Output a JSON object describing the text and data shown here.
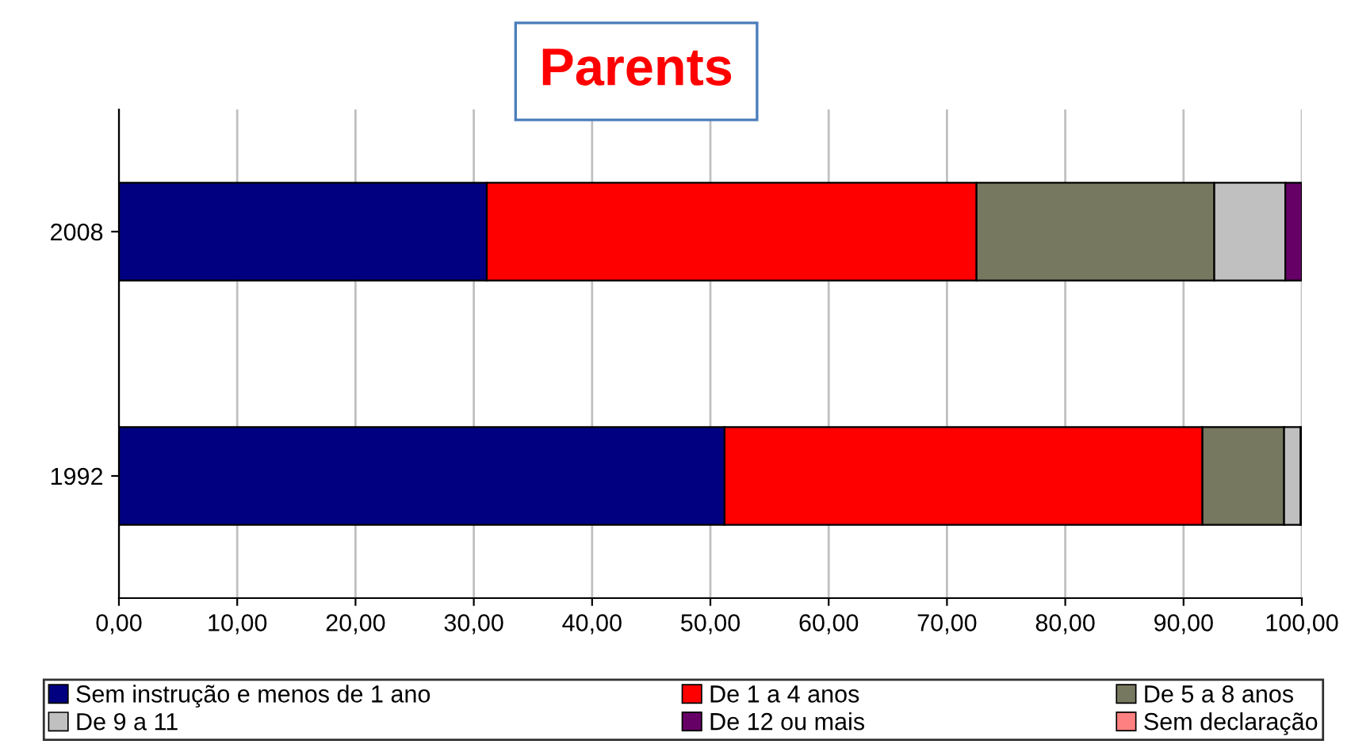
{
  "chart_data": {
    "type": "bar",
    "orientation": "horizontal",
    "stacked": true,
    "title": "Parents",
    "categories": [
      "2008",
      "1992"
    ],
    "series": [
      {
        "name": "Sem instrução e menos de 1 ano",
        "color": "#000080",
        "values": [
          31.1,
          51.2
        ]
      },
      {
        "name": "De 1 a 4 anos",
        "color": "#ff0000",
        "values": [
          41.4,
          40.4
        ]
      },
      {
        "name": "De 5 a 8 anos",
        "color": "#777860",
        "values": [
          20.1,
          6.9
        ]
      },
      {
        "name": "De 9 a 11",
        "color": "#c0c0c0",
        "values": [
          6.0,
          1.4
        ]
      },
      {
        "name": "De 12 ou mais",
        "color": "#660066",
        "values": [
          1.4,
          0.1
        ]
      },
      {
        "name": "Sem declaração",
        "color": "#ff8080",
        "values": [
          0,
          0
        ]
      }
    ],
    "xlim": [
      0,
      100
    ],
    "xticks": [
      {
        "value": 0,
        "label": "0,00"
      },
      {
        "value": 10,
        "label": "10,00"
      },
      {
        "value": 20,
        "label": "20,00"
      },
      {
        "value": 30,
        "label": "30,00"
      },
      {
        "value": 40,
        "label": "40,00"
      },
      {
        "value": 50,
        "label": "50,00"
      },
      {
        "value": 60,
        "label": "60,00"
      },
      {
        "value": 70,
        "label": "70,00"
      },
      {
        "value": 80,
        "label": "80,00"
      },
      {
        "value": 90,
        "label": "90,00"
      },
      {
        "value": 100,
        "label": "100,00"
      }
    ],
    "grid": "x",
    "legend": "bottom"
  }
}
